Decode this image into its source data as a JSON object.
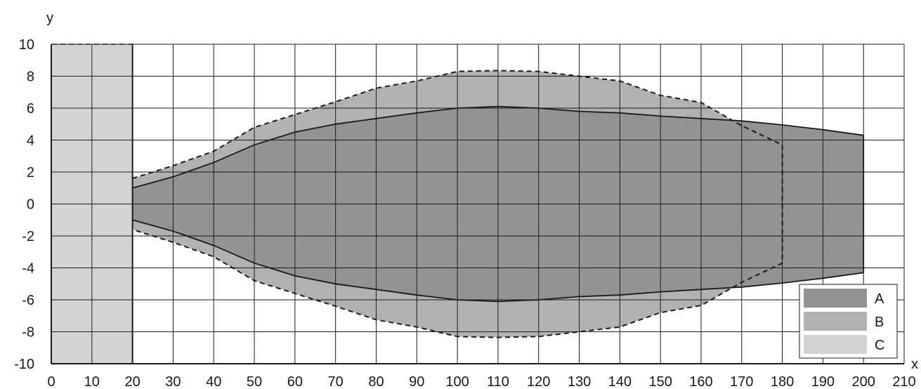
{
  "chart_data": {
    "type": "area",
    "title": "",
    "xlabel": "x",
    "ylabel": "y",
    "xlim": [
      0,
      210
    ],
    "ylim": [
      -10,
      10
    ],
    "xticks": [
      0,
      10,
      20,
      30,
      40,
      50,
      60,
      70,
      80,
      90,
      100,
      110,
      120,
      130,
      140,
      150,
      160,
      170,
      180,
      190,
      200,
      210
    ],
    "yticks": [
      -10,
      -8,
      -6,
      -4,
      -2,
      0,
      2,
      4,
      6,
      8,
      10
    ],
    "grid": true,
    "legend_position": "bottom-right",
    "series": [
      {
        "name": "A",
        "color": "#939393",
        "line": "solid",
        "symmetric": true,
        "x": [
          20,
          30,
          40,
          50,
          60,
          70,
          80,
          90,
          100,
          110,
          120,
          130,
          140,
          150,
          160,
          170,
          180,
          190,
          200
        ],
        "y_upper": [
          1.0,
          1.7,
          2.6,
          3.7,
          4.5,
          5.0,
          5.35,
          5.7,
          6.0,
          6.1,
          6.0,
          5.8,
          5.7,
          5.5,
          5.35,
          5.2,
          4.95,
          4.65,
          4.3
        ]
      },
      {
        "name": "B",
        "color": "#b1b1b4",
        "line": "dashed",
        "symmetric": true,
        "x": [
          20,
          30,
          40,
          50,
          60,
          70,
          80,
          90,
          100,
          110,
          120,
          130,
          140,
          150,
          160,
          170,
          180,
          180
        ],
        "y_upper": [
          1.6,
          2.4,
          3.3,
          4.8,
          5.6,
          6.4,
          7.25,
          7.7,
          8.3,
          8.35,
          8.3,
          8.0,
          7.7,
          6.8,
          6.35,
          4.9,
          3.7,
          0
        ]
      },
      {
        "name": "C",
        "color": "#d3d4d5",
        "line": "dashed",
        "x_range": [
          0,
          20
        ],
        "y_range": [
          -10,
          10
        ]
      }
    ]
  }
}
